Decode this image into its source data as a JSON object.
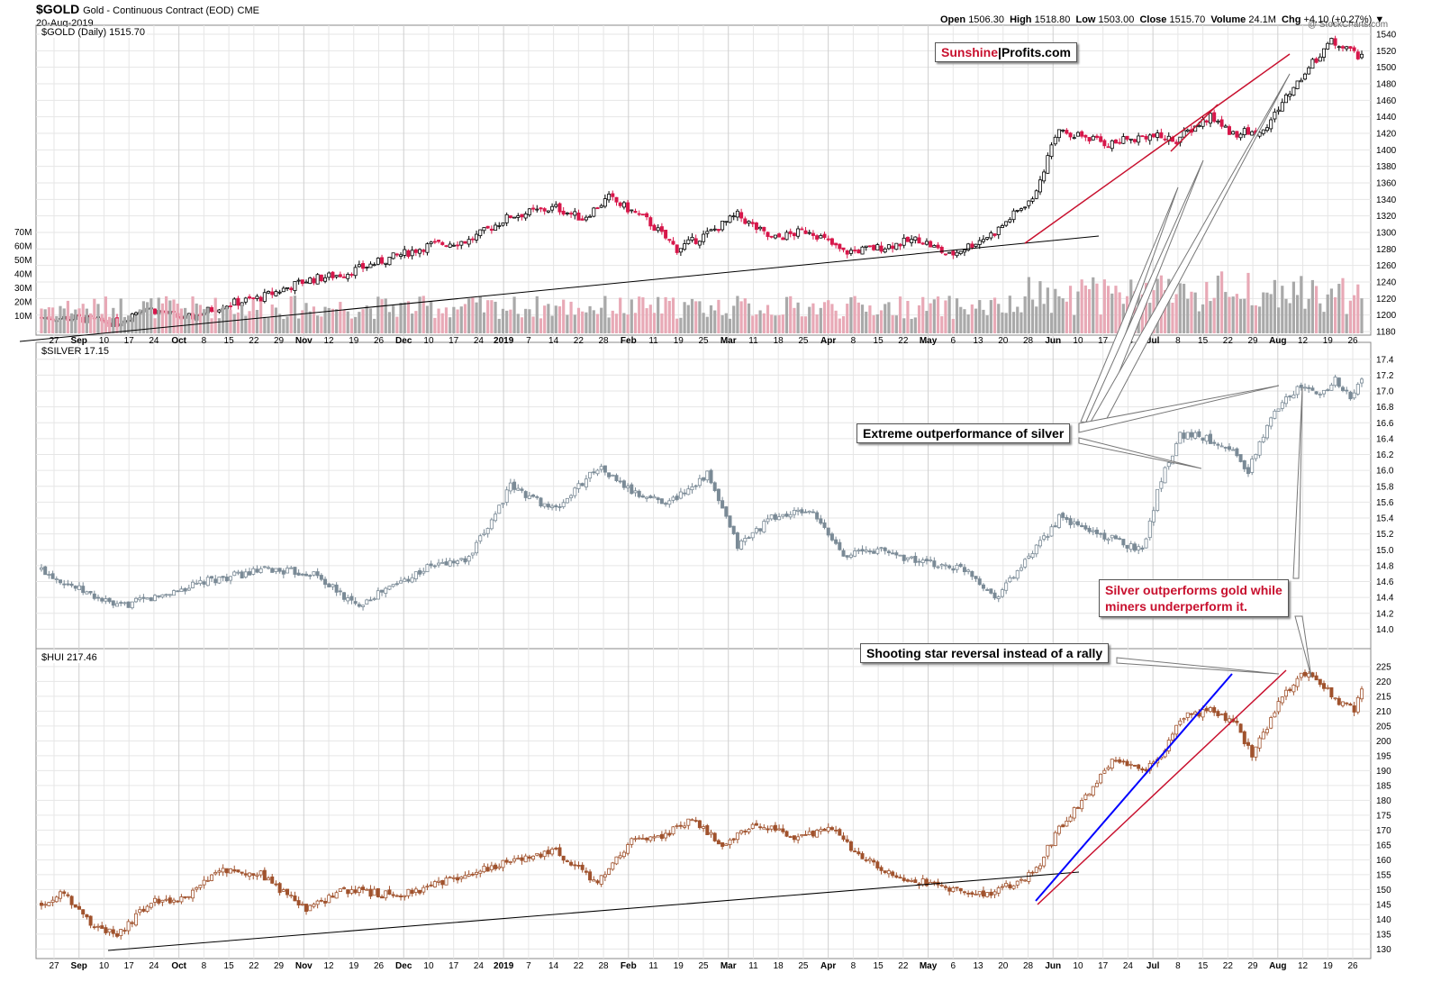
{
  "header": {
    "symbol": "$GOLD",
    "subtitle": "Gold - Continuous Contract (EOD)",
    "exchange": "CME",
    "date": "20-Aug-2019",
    "copyright": "@ StockCharts.com",
    "open_label": "Open",
    "open": "1506.30",
    "high_label": "High",
    "high": "1518.80",
    "low_label": "Low",
    "low": "1503.00",
    "close_label": "Close",
    "close": "1515.70",
    "volume_label": "Volume",
    "volume": "24.1M",
    "chg_label": "Chg",
    "chg": "+4.10 (+0.27%)"
  },
  "panels": {
    "gold_label": "$GOLD (Daily) 1515.70",
    "silver_label": "$SILVER 17.15",
    "hui_label": "$HUI 217.46"
  },
  "logo": {
    "part1": "Sunshine",
    "part2": "Profits.com"
  },
  "annotations": {
    "silver_outperf": "Extreme outperformance of silver",
    "silver_vs_miners_1": "Silver outperforms gold while",
    "silver_vs_miners_2": "miners underperform it.",
    "shooting_star": "Shooting star reversal instead of a rally"
  },
  "colors": {
    "up": "#000000",
    "down": "#d7174a",
    "silver": "#7a8a96",
    "hui": "#a0522d",
    "vol_up": "#a9a9a9",
    "vol_down": "#e8a9b6",
    "grid": "#e6e6e6",
    "trend_red": "#c8102e",
    "trend_blue": "#0000ff",
    "trend_black": "#000000"
  },
  "chart_data": [
    {
      "type": "candlestick",
      "name": "$GOLD (Daily)",
      "ylim": [
        1180,
        1540
      ],
      "yticks": [
        1180,
        1200,
        1220,
        1240,
        1260,
        1280,
        1300,
        1320,
        1340,
        1360,
        1380,
        1400,
        1420,
        1440,
        1460,
        1480,
        1500,
        1520,
        1540
      ],
      "volume_ticks": [
        "10M",
        "20M",
        "30M",
        "40M",
        "50M",
        "60M",
        "70M"
      ],
      "xticks": [
        "27",
        "Sep",
        "10",
        "17",
        "24",
        "Oct",
        "8",
        "15",
        "22",
        "29",
        "Nov",
        "12",
        "19",
        "26",
        "Dec",
        "10",
        "17",
        "24",
        "2019",
        "7",
        "14",
        "22",
        "28",
        "Feb",
        "11",
        "19",
        "25",
        "Mar",
        "11",
        "18",
        "25",
        "Apr",
        "8",
        "15",
        "22",
        "May",
        "6",
        "13",
        "20",
        "28",
        "Jun",
        "10",
        "17",
        "24",
        "Jul",
        "8",
        "15",
        "22",
        "29",
        "Aug",
        "12",
        "19",
        "26"
      ],
      "anchors": [
        [
          0,
          1197
        ],
        [
          10,
          1196
        ],
        [
          20,
          1190
        ],
        [
          27,
          1210
        ],
        [
          38,
          1195
        ],
        [
          48,
          1212
        ],
        [
          58,
          1221
        ],
        [
          70,
          1242
        ],
        [
          80,
          1250
        ],
        [
          93,
          1270
        ],
        [
          103,
          1285
        ],
        [
          113,
          1290
        ],
        [
          124,
          1320
        ],
        [
          136,
          1330
        ],
        [
          143,
          1317
        ],
        [
          150,
          1342
        ],
        [
          160,
          1315
        ],
        [
          168,
          1280
        ],
        [
          176,
          1298
        ],
        [
          184,
          1321
        ],
        [
          193,
          1292
        ],
        [
          203,
          1303
        ],
        [
          212,
          1276
        ],
        [
          222,
          1282
        ],
        [
          232,
          1292
        ],
        [
          240,
          1272
        ],
        [
          252,
          1300
        ],
        [
          262,
          1343
        ],
        [
          269,
          1425
        ],
        [
          282,
          1407
        ],
        [
          292,
          1418
        ],
        [
          300,
          1412
        ],
        [
          309,
          1440
        ],
        [
          315,
          1420
        ],
        [
          323,
          1422
        ],
        [
          329,
          1464
        ],
        [
          335,
          1500
        ],
        [
          341,
          1532
        ],
        [
          346,
          1520
        ],
        [
          349,
          1510
        ]
      ],
      "last_close": 1515.7
    },
    {
      "type": "candlestick",
      "name": "$SILVER",
      "ylim": [
        13.8,
        17.5
      ],
      "yticks": [
        14.0,
        14.2,
        14.4,
        14.6,
        14.8,
        15.0,
        15.2,
        15.4,
        15.6,
        15.8,
        16.0,
        16.2,
        16.4,
        16.6,
        16.8,
        17.0,
        17.2,
        17.4
      ],
      "anchors": [
        [
          0,
          14.75
        ],
        [
          10,
          14.5
        ],
        [
          20,
          14.28
        ],
        [
          30,
          14.4
        ],
        [
          45,
          14.62
        ],
        [
          60,
          14.75
        ],
        [
          72,
          14.7
        ],
        [
          83,
          14.3
        ],
        [
          93,
          14.55
        ],
        [
          103,
          14.8
        ],
        [
          113,
          14.88
        ],
        [
          124,
          15.8
        ],
        [
          136,
          15.5
        ],
        [
          147,
          16.05
        ],
        [
          157,
          15.7
        ],
        [
          166,
          15.6
        ],
        [
          176,
          15.95
        ],
        [
          184,
          15.05
        ],
        [
          193,
          15.4
        ],
        [
          203,
          15.5
        ],
        [
          212,
          14.95
        ],
        [
          222,
          15.0
        ],
        [
          232,
          14.85
        ],
        [
          245,
          14.75
        ],
        [
          252,
          14.4
        ],
        [
          262,
          14.95
        ],
        [
          269,
          15.4
        ],
        [
          282,
          15.15
        ],
        [
          291,
          15.0
        ],
        [
          296,
          15.9
        ],
        [
          301,
          16.45
        ],
        [
          305,
          16.45
        ],
        [
          314,
          16.3
        ],
        [
          319,
          15.98
        ],
        [
          323,
          16.45
        ],
        [
          328,
          16.9
        ],
        [
          333,
          17.05
        ],
        [
          338,
          16.95
        ],
        [
          342,
          17.15
        ],
        [
          346,
          16.9
        ],
        [
          349,
          17.15
        ]
      ],
      "last_close": 17.15
    },
    {
      "type": "candlestick",
      "name": "$HUI",
      "ylim": [
        128,
        228
      ],
      "yticks": [
        130,
        135,
        140,
        145,
        150,
        155,
        160,
        165,
        170,
        175,
        180,
        185,
        190,
        195,
        200,
        205,
        210,
        215,
        220,
        225
      ],
      "anchors": [
        [
          0,
          145
        ],
        [
          6,
          149
        ],
        [
          12,
          140
        ],
        [
          20,
          134
        ],
        [
          29,
          146
        ],
        [
          38,
          147
        ],
        [
          48,
          157
        ],
        [
          58,
          155
        ],
        [
          70,
          143
        ],
        [
          80,
          150
        ],
        [
          93,
          148
        ],
        [
          103,
          151
        ],
        [
          113,
          155
        ],
        [
          124,
          160
        ],
        [
          136,
          163
        ],
        [
          147,
          152
        ],
        [
          157,
          168
        ],
        [
          163,
          167
        ],
        [
          172,
          174
        ],
        [
          180,
          165
        ],
        [
          190,
          172
        ],
        [
          199,
          167
        ],
        [
          208,
          171
        ],
        [
          216,
          162
        ],
        [
          226,
          154
        ],
        [
          236,
          152
        ],
        [
          249,
          148
        ],
        [
          262,
          155
        ],
        [
          269,
          170
        ],
        [
          283,
          193
        ],
        [
          291,
          190
        ],
        [
          296,
          195
        ],
        [
          301,
          208
        ],
        [
          309,
          210
        ],
        [
          316,
          205
        ],
        [
          320,
          195
        ],
        [
          326,
          210
        ],
        [
          333,
          224
        ],
        [
          338,
          220
        ],
        [
          342,
          214
        ],
        [
          347,
          211
        ],
        [
          349,
          216
        ]
      ],
      "last_close": 217.46
    }
  ]
}
